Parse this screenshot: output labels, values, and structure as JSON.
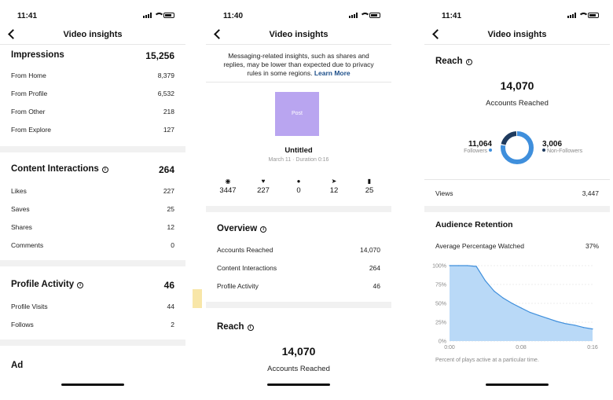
{
  "colors": {
    "accent": "#3f8fdc",
    "accent_light": "#b9d9f7",
    "donut_dark": "#1f3b5e",
    "post_thumb": "#b9a5f0",
    "link": "#1d4f8a"
  },
  "screen1": {
    "time": "11:41",
    "title": "Video insights",
    "impressions": {
      "label": "Impressions",
      "value": "15,256",
      "rows": [
        {
          "label": "From Home",
          "value": "8,379"
        },
        {
          "label": "From Profile",
          "value": "6,532"
        },
        {
          "label": "From Other",
          "value": "218"
        },
        {
          "label": "From Explore",
          "value": "127"
        }
      ]
    },
    "content_interactions": {
      "label": "Content Interactions",
      "value": "264",
      "rows": [
        {
          "label": "Likes",
          "value": "227"
        },
        {
          "label": "Saves",
          "value": "25"
        },
        {
          "label": "Shares",
          "value": "12"
        },
        {
          "label": "Comments",
          "value": "0"
        }
      ]
    },
    "profile_activity": {
      "label": "Profile Activity",
      "value": "46",
      "rows": [
        {
          "label": "Profile Visits",
          "value": "44"
        },
        {
          "label": "Follows",
          "value": "2"
        }
      ]
    },
    "ad_label": "Ad"
  },
  "screen2": {
    "time": "11:40",
    "title": "Video insights",
    "notice": "Messaging-related insights, such as shares and replies, may be lower than expected due to privacy rules in some regions.",
    "learn_more": "Learn More",
    "post_label": "Post",
    "post_title": "Untitled",
    "post_meta": "March 11 · Duration 0:16",
    "stats": [
      {
        "icon": "eye-icon",
        "glyph": "◉",
        "value": "3447"
      },
      {
        "icon": "heart-icon",
        "glyph": "♥",
        "value": "227"
      },
      {
        "icon": "comment-icon",
        "glyph": "●",
        "value": "0"
      },
      {
        "icon": "share-icon",
        "glyph": "➤",
        "value": "12"
      },
      {
        "icon": "bookmark-icon",
        "glyph": "▮",
        "value": "25"
      }
    ],
    "overview": {
      "label": "Overview",
      "rows": [
        {
          "label": "Accounts Reached",
          "value": "14,070"
        },
        {
          "label": "Content Interactions",
          "value": "264"
        },
        {
          "label": "Profile Activity",
          "value": "46"
        }
      ]
    },
    "reach": {
      "label": "Reach",
      "value": "14,070",
      "caption": "Accounts Reached"
    }
  },
  "screen3": {
    "time": "11:41",
    "title": "Video insights",
    "reach": {
      "label": "Reach",
      "value": "14,070",
      "caption": "Accounts Reached",
      "followers_value": "11,064",
      "followers_label": "Followers",
      "non_followers_value": "3,006",
      "non_followers_label": "Non-Followers"
    },
    "views": {
      "label": "Views",
      "value": "3,447"
    },
    "retention": {
      "label": "Audience Retention",
      "avg_label": "Average Percentage Watched",
      "avg_value": "37%",
      "caption": "Percent of plays active at a particular time."
    }
  },
  "chart_data": [
    {
      "type": "pie",
      "categories": [
        "Followers",
        "Non-Followers"
      ],
      "values": [
        11064,
        3006
      ]
    },
    {
      "type": "area",
      "x": [
        0,
        1,
        2,
        3,
        4,
        5,
        6,
        7,
        8,
        9,
        10,
        11,
        12,
        13,
        14,
        15,
        16
      ],
      "values": [
        100,
        100,
        100,
        99,
        80,
        66,
        57,
        50,
        44,
        38,
        34,
        30,
        26,
        23,
        21,
        18,
        16
      ],
      "xticks": [
        "0:00",
        "0:08",
        "0:16"
      ],
      "yticks": [
        "0%",
        "25%",
        "50%",
        "75%",
        "100%"
      ],
      "ylim": [
        0,
        100
      ],
      "grid": true
    }
  ]
}
